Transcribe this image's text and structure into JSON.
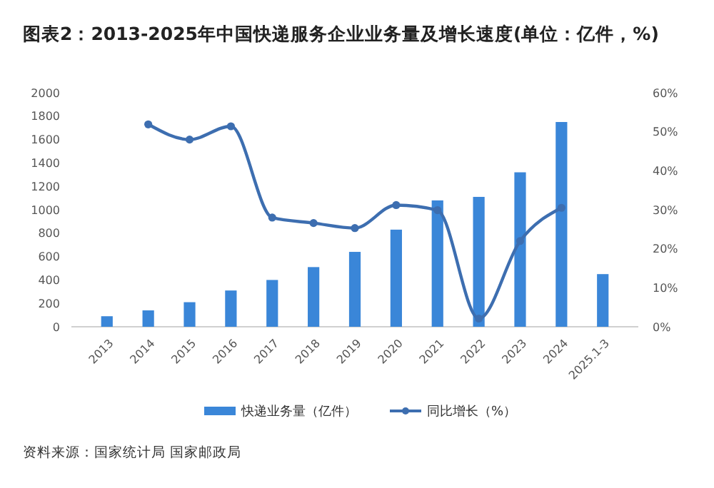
{
  "chart_data": {
    "type": "bar",
    "title": "图表2：2013-2025年中国快递服务企业业务量及增长速度(单位：亿件，%)",
    "categories": [
      "2013",
      "2014",
      "2015",
      "2016",
      "2017",
      "2018",
      "2019",
      "2020",
      "2021",
      "2022",
      "2023",
      "2024",
      "2025.1-3"
    ],
    "series": [
      {
        "name": "快递业务量（亿件）",
        "color": "#3a86d8",
        "values": [
          90,
          140,
          210,
          310,
          400,
          510,
          640,
          830,
          1080,
          1110,
          1320,
          1750,
          450
        ]
      },
      {
        "name": "同比增长（%）",
        "type": "line",
        "axis": "y2",
        "color": "#3d6eb0",
        "values": [
          null,
          51.9,
          48,
          51.4,
          28,
          26.6,
          25.3,
          31.2,
          29.9,
          2.1,
          22,
          30.5,
          null
        ]
      }
    ],
    "ylim": [
      0,
      2000
    ],
    "yticks": [
      0,
      200,
      400,
      600,
      800,
      1000,
      1200,
      1400,
      1600,
      1800,
      2000
    ],
    "y2lim": [
      0,
      60
    ],
    "y2ticks": [
      {
        "value": 0,
        "label": "0%"
      },
      {
        "value": 10,
        "label": "10%"
      },
      {
        "value": 20,
        "label": "20%"
      },
      {
        "value": 30,
        "label": "30%"
      },
      {
        "value": 40,
        "label": "40%"
      },
      {
        "value": 50,
        "label": "50%"
      },
      {
        "value": 60,
        "label": "60%"
      }
    ],
    "marker": "circle",
    "legend": "bottom",
    "annotations": [
      "资料来源：国家统计局 国家邮政局"
    ]
  }
}
